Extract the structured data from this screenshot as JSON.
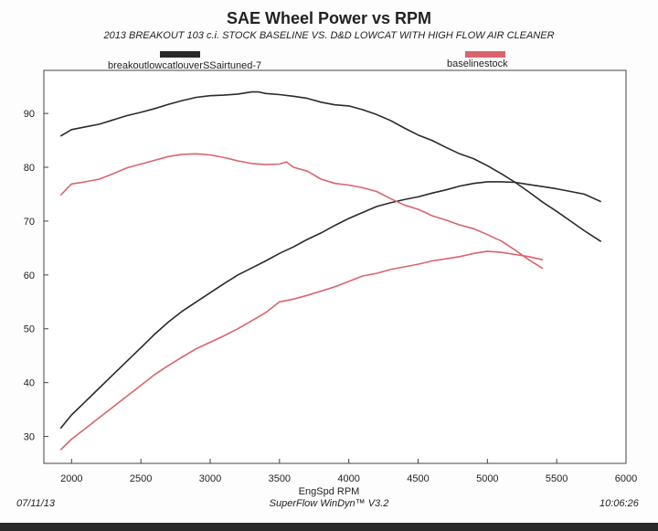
{
  "header": {
    "title": "SAE Wheel Power vs RPM",
    "subtitle": "2013 BREAKOUT 103 c.i. STOCK BASELINE VS. D&D LOWCAT WITH HIGH FLOW AIR CLEANER"
  },
  "footer": {
    "date": "07/11/13",
    "software": "SuperFlow WinDyn™ V3.2",
    "time": "10:06:26"
  },
  "chart_data": {
    "type": "line",
    "title": "SAE Wheel Power vs RPM",
    "subtitle": "2013 BREAKOUT 103 c.i. STOCK BASELINE VS. D&D LOWCAT WITH HIGH FLOW AIR CLEANER",
    "xlabel": "EngSpd  RPM",
    "ylabel": "",
    "xlim": [
      1800,
      6000
    ],
    "ylim": [
      25,
      98
    ],
    "x_ticks": [
      2000,
      2500,
      3000,
      3500,
      4000,
      4500,
      5000,
      5500,
      6000
    ],
    "y_ticks": [
      30,
      40,
      50,
      60,
      70,
      80,
      90
    ],
    "grid": false,
    "legend_position": "top",
    "series": [
      {
        "name": "breakoutlowcatlouverSSairtuned-7",
        "color": "#2a2a2a",
        "kind": "power",
        "x": [
          1920,
          2000,
          2100,
          2200,
          2300,
          2400,
          2500,
          2600,
          2700,
          2800,
          2900,
          3000,
          3100,
          3200,
          3300,
          3400,
          3500,
          3600,
          3700,
          3800,
          3900,
          4000,
          4100,
          4200,
          4300,
          4400,
          4500,
          4600,
          4700,
          4800,
          4900,
          5000,
          5100,
          5200,
          5300,
          5400,
          5500,
          5600,
          5700,
          5820
        ],
        "values": [
          31.5,
          34.0,
          36.5,
          39.0,
          41.5,
          44.0,
          46.5,
          49.0,
          51.3,
          53.3,
          55.0,
          56.7,
          58.4,
          60.0,
          61.3,
          62.6,
          64.0,
          65.2,
          66.6,
          67.8,
          69.2,
          70.5,
          71.6,
          72.7,
          73.4,
          74.0,
          74.5,
          75.2,
          75.8,
          76.5,
          77.0,
          77.3,
          77.3,
          77.2,
          76.8,
          76.4,
          76.0,
          75.5,
          75.0,
          73.6
        ]
      },
      {
        "name": "baselinestock",
        "color": "#d9646e",
        "kind": "power",
        "x": [
          1920,
          2000,
          2100,
          2200,
          2300,
          2400,
          2500,
          2600,
          2700,
          2800,
          2900,
          3000,
          3100,
          3200,
          3300,
          3400,
          3500,
          3600,
          3700,
          3800,
          3900,
          4000,
          4100,
          4200,
          4300,
          4400,
          4500,
          4600,
          4700,
          4800,
          4900,
          5000,
          5100,
          5200,
          5300,
          5400
        ],
        "values": [
          27.5,
          29.5,
          31.5,
          33.5,
          35.5,
          37.5,
          39.5,
          41.5,
          43.2,
          44.8,
          46.3,
          47.5,
          48.7,
          50.0,
          51.5,
          53.0,
          55.0,
          55.5,
          56.2,
          57.0,
          57.8,
          58.8,
          59.8,
          60.3,
          61.0,
          61.5,
          62.0,
          62.6,
          63.0,
          63.4,
          64.0,
          64.4,
          64.2,
          63.8,
          63.4,
          62.8
        ]
      },
      {
        "name": "breakoutlowcatlouverSSairtuned-7",
        "color": "#2a2a2a",
        "kind": "torque",
        "x": [
          1920,
          2000,
          2100,
          2200,
          2300,
          2400,
          2500,
          2600,
          2700,
          2800,
          2900,
          3000,
          3100,
          3200,
          3300,
          3350,
          3400,
          3500,
          3600,
          3700,
          3800,
          3900,
          4000,
          4100,
          4200,
          4300,
          4400,
          4500,
          4600,
          4700,
          4800,
          4900,
          5000,
          5100,
          5200,
          5300,
          5400,
          5500,
          5600,
          5700,
          5820
        ],
        "values": [
          85.8,
          87.0,
          87.5,
          88.0,
          88.8,
          89.6,
          90.2,
          90.9,
          91.7,
          92.4,
          93.0,
          93.3,
          93.4,
          93.6,
          94.0,
          94.0,
          93.7,
          93.5,
          93.2,
          92.8,
          92.1,
          91.6,
          91.4,
          90.7,
          89.8,
          88.7,
          87.3,
          86.0,
          85.0,
          83.7,
          82.5,
          81.6,
          80.3,
          78.8,
          77.2,
          75.4,
          73.5,
          71.8,
          70.0,
          68.2,
          66.2
        ]
      },
      {
        "name": "baselinestock",
        "color": "#d9646e",
        "kind": "torque",
        "x": [
          1920,
          2000,
          2100,
          2200,
          2300,
          2400,
          2500,
          2600,
          2700,
          2800,
          2900,
          3000,
          3100,
          3200,
          3300,
          3400,
          3500,
          3550,
          3600,
          3700,
          3800,
          3900,
          4000,
          4100,
          4200,
          4300,
          4400,
          4500,
          4600,
          4700,
          4800,
          4900,
          5000,
          5100,
          5200,
          5300,
          5400
        ],
        "values": [
          74.8,
          76.9,
          77.3,
          77.8,
          78.8,
          79.9,
          80.6,
          81.3,
          82.0,
          82.4,
          82.5,
          82.3,
          81.8,
          81.2,
          80.7,
          80.5,
          80.6,
          81.0,
          80.0,
          79.3,
          77.8,
          77.0,
          76.7,
          76.2,
          75.5,
          74.2,
          73.0,
          72.2,
          71.0,
          70.2,
          69.3,
          68.6,
          67.5,
          66.3,
          64.6,
          62.8,
          61.2
        ]
      }
    ]
  }
}
